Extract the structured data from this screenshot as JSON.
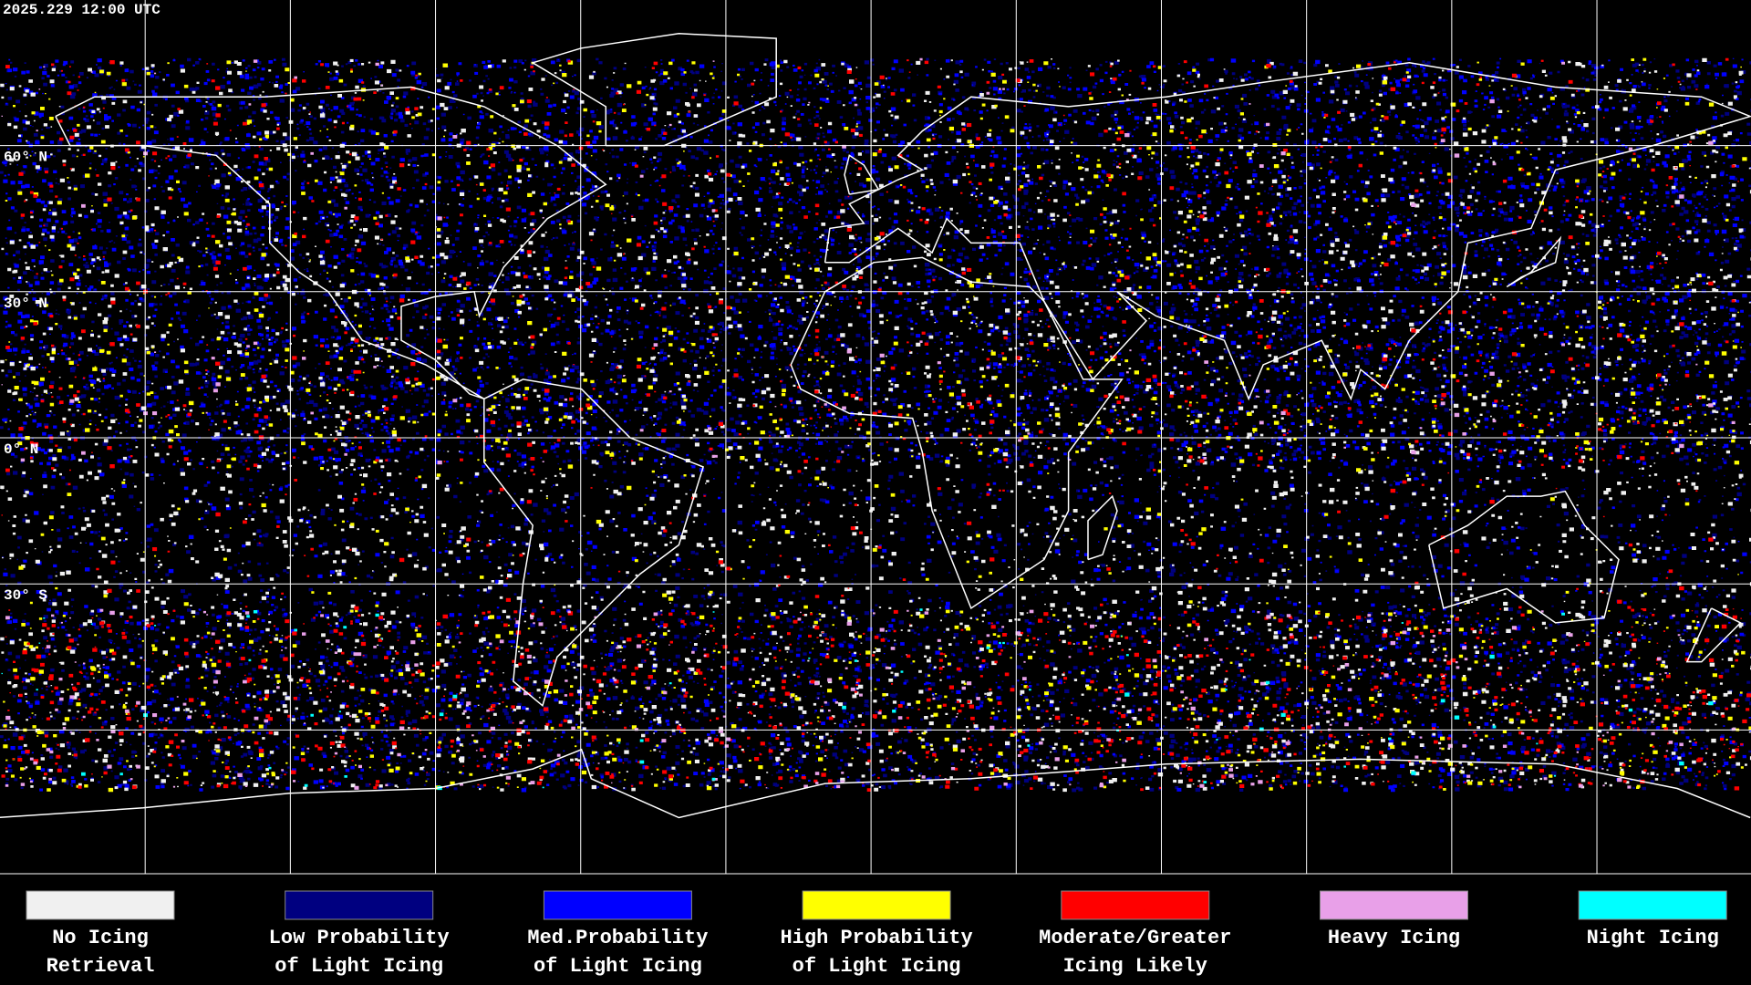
{
  "header": {
    "timestamp": "2025.229 12:00 UTC"
  },
  "map": {
    "lat_labels": [
      "60° N",
      "30° N",
      "0° N",
      "30° S"
    ]
  },
  "legend": {
    "items": [
      {
        "lines": [
          "No Icing",
          "Retrieval"
        ],
        "color": "#f0f0f0"
      },
      {
        "lines": [
          "Low Probability",
          "of Light Icing"
        ],
        "color": "#000080"
      },
      {
        "lines": [
          "Med.Probability",
          "of Light Icing"
        ],
        "color": "#0000ff"
      },
      {
        "lines": [
          "High Probability",
          "of Light Icing"
        ],
        "color": "#ffff00"
      },
      {
        "lines": [
          "Moderate/Greater",
          "Icing Likely"
        ],
        "color": "#ff0000"
      },
      {
        "lines": [
          "Heavy Icing"
        ],
        "color": "#e8a0e8"
      },
      {
        "lines": [
          "Night Icing"
        ],
        "color": "#00ffff"
      }
    ]
  }
}
